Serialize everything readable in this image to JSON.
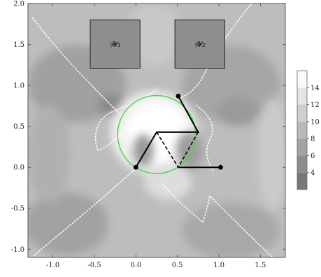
{
  "chart_data": {
    "type": "heatmap",
    "title": "",
    "xlabel": "",
    "ylabel": "",
    "xlim": [
      -1.3,
      1.8
    ],
    "ylim": [
      -1.1,
      2.0
    ],
    "x_ticks": [
      "-1.0",
      "-0.5",
      "0.0",
      "0.5",
      "1.0",
      "1.5"
    ],
    "x_tick_values": [
      -1.0,
      -0.5,
      0.0,
      0.5,
      1.0,
      1.5
    ],
    "y_ticks": [
      "-1.0",
      "-0.5",
      "0.0",
      "0.5",
      "1.0",
      "1.5",
      "2.0"
    ],
    "y_tick_values": [
      -1.0,
      -0.5,
      0.0,
      0.5,
      1.0,
      1.5,
      2.0
    ],
    "legend": {
      "placement": "right",
      "labels": [
        "4",
        "6",
        "8",
        "10",
        "12",
        "14"
      ],
      "values": [
        4,
        6,
        8,
        10,
        12,
        14
      ],
      "range": [
        2,
        16
      ]
    },
    "regions": [
      {
        "label": "𝓦₁",
        "x": [
          -0.55,
          0.05
        ],
        "y": [
          1.21,
          1.8
        ]
      },
      {
        "label": "𝓦₂",
        "x": [
          0.47,
          1.07
        ],
        "y": [
          1.21,
          1.8
        ]
      }
    ],
    "circle": {
      "cx": 0.25,
      "cy": 0.4,
      "r": 0.47,
      "color": "#44dd44"
    },
    "solid_chain": [
      [
        0.0,
        0.0
      ],
      [
        0.25,
        0.43
      ],
      [
        0.75,
        0.43
      ],
      [
        0.51,
        0.87
      ]
    ],
    "dashed_chain": [
      [
        0.25,
        0.43
      ],
      [
        0.51,
        0.0
      ],
      [
        0.75,
        0.43
      ]
    ],
    "base_link": [
      [
        0.51,
        0.0
      ],
      [
        1.02,
        0.0
      ]
    ],
    "joints": [
      [
        0.0,
        0.0
      ],
      [
        0.51,
        0.87
      ],
      [
        1.02,
        0.0
      ]
    ],
    "colors": {
      "dark": "#777777",
      "light": "#ffffff",
      "frame": "#555555"
    }
  }
}
